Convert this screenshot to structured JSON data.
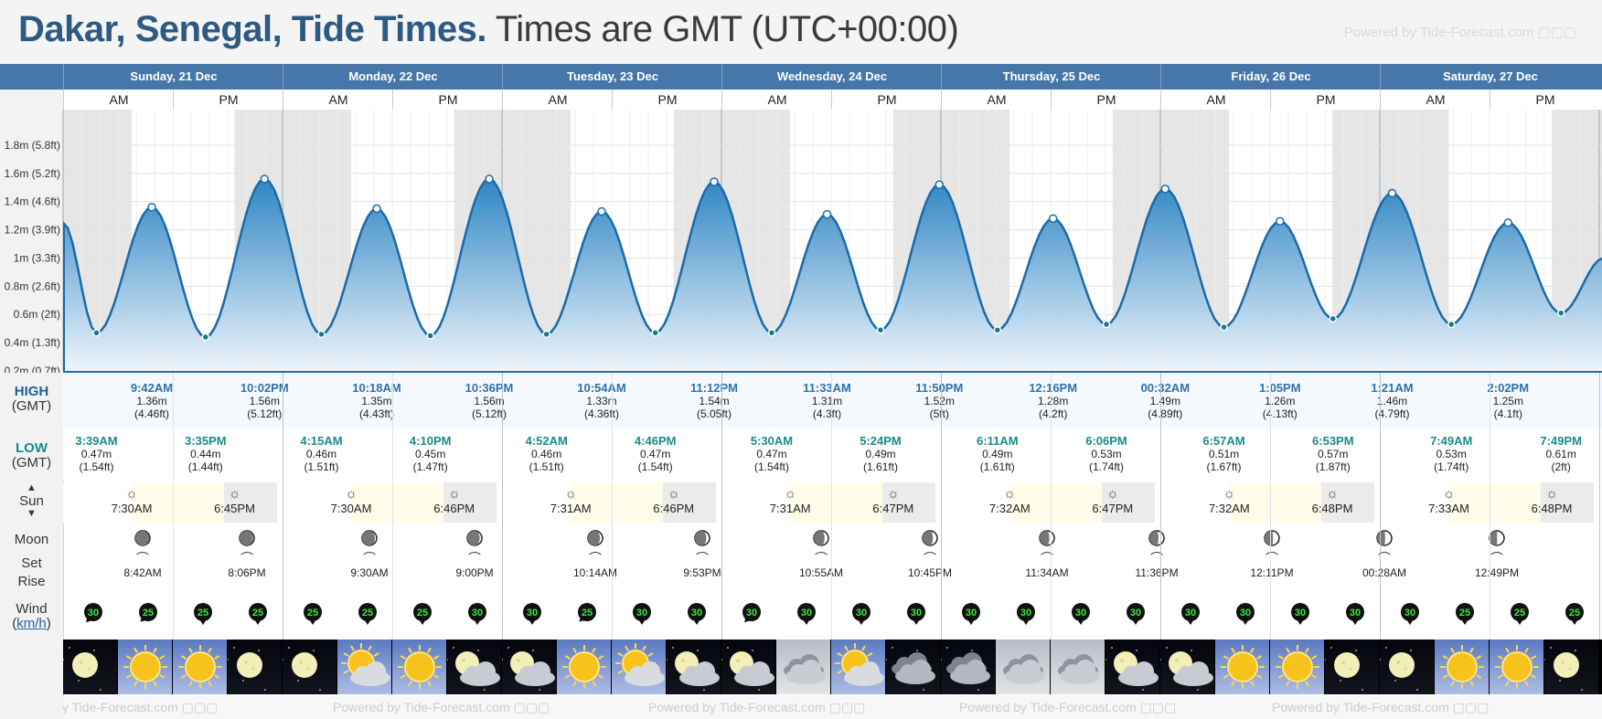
{
  "header": {
    "place": "Dakar, Senegal, Tide Times.",
    "timezone": "Times are GMT (UTC+00:00)",
    "powered": "Powered by Tide-Forecast.com"
  },
  "days": [
    {
      "name": "Sunday, 21 Dec"
    },
    {
      "name": "Monday, 22 Dec"
    },
    {
      "name": "Tuesday, 23 Dec"
    },
    {
      "name": "Wednesday, 24 Dec"
    },
    {
      "name": "Thursday, 25 Dec"
    },
    {
      "name": "Friday, 26 Dec"
    },
    {
      "name": "Saturday, 27 Dec"
    }
  ],
  "ampm": {
    "am": "AM",
    "pm": "PM"
  },
  "labels": {
    "high": "HIGH",
    "high_tz": "(GMT)",
    "low": "LOW",
    "low_tz": "(GMT)",
    "sun": "Sun",
    "moon": "Moon",
    "set": "Set",
    "rise": "Rise",
    "wind": "Wind",
    "wind_unit": "km/h"
  },
  "chart_data": {
    "type": "area",
    "yticks": [
      {
        "v": 0.2,
        "label": "0.2m (0.7ft)"
      },
      {
        "v": 0.4,
        "label": "0.4m (1.3ft)"
      },
      {
        "v": 0.6,
        "label": "0.6m (2ft)"
      },
      {
        "v": 0.8,
        "label": "0.8m (2.6ft)"
      },
      {
        "v": 1.0,
        "label": "1m (3.3ft)"
      },
      {
        "v": 1.2,
        "label": "1.2m (3.9ft)"
      },
      {
        "v": 1.4,
        "label": "1.4m (4.6ft)"
      },
      {
        "v": 1.6,
        "label": "1.6m (5.2ft)"
      },
      {
        "v": 1.8,
        "label": "1.8m (5.8ft)"
      }
    ],
    "ylim": [
      0.2,
      2.0
    ],
    "hours_shown": [
      0,
      168.5
    ],
    "start_level": 1.25,
    "end_level": 1.0,
    "extremes": [
      {
        "h": 3.65,
        "m": 0.47
      },
      {
        "h": 9.7,
        "m": 1.36
      },
      {
        "h": 15.58,
        "m": 0.44
      },
      {
        "h": 22.03,
        "m": 1.56
      },
      {
        "h": 28.25,
        "m": 0.46
      },
      {
        "h": 34.3,
        "m": 1.35
      },
      {
        "h": 40.17,
        "m": 0.45
      },
      {
        "h": 46.6,
        "m": 1.56
      },
      {
        "h": 52.87,
        "m": 0.46
      },
      {
        "h": 58.9,
        "m": 1.33
      },
      {
        "h": 64.77,
        "m": 0.47
      },
      {
        "h": 71.2,
        "m": 1.54
      },
      {
        "h": 77.5,
        "m": 0.47
      },
      {
        "h": 83.55,
        "m": 1.31
      },
      {
        "h": 89.4,
        "m": 0.49
      },
      {
        "h": 95.83,
        "m": 1.52
      },
      {
        "h": 102.18,
        "m": 0.49
      },
      {
        "h": 108.27,
        "m": 1.28
      },
      {
        "h": 114.1,
        "m": 0.53
      },
      {
        "h": 120.53,
        "m": 1.49
      },
      {
        "h": 126.95,
        "m": 0.51
      },
      {
        "h": 133.08,
        "m": 1.26
      },
      {
        "h": 138.88,
        "m": 0.57
      },
      {
        "h": 145.35,
        "m": 1.46
      },
      {
        "h": 151.82,
        "m": 0.53
      },
      {
        "h": 158.03,
        "m": 1.25
      },
      {
        "h": 163.82,
        "m": 0.61
      }
    ],
    "daylight": [
      {
        "rise": 7.5,
        "set": 18.75
      },
      {
        "rise": 31.5,
        "set": 42.77
      },
      {
        "rise": 55.52,
        "set": 66.77
      },
      {
        "rise": 79.52,
        "set": 90.78
      },
      {
        "rise": 103.53,
        "set": 114.78
      },
      {
        "rise": 127.53,
        "set": 138.8
      },
      {
        "rise": 151.55,
        "set": 162.8
      }
    ]
  },
  "tides": {
    "high": [
      {
        "h": 9.7,
        "time": "9:42AM",
        "m": "1.36m",
        "ft": "(4.46ft)"
      },
      {
        "h": 22.03,
        "time": "10:02PM",
        "m": "1.56m",
        "ft": "(5.12ft)"
      },
      {
        "h": 34.3,
        "time": "10:18AM",
        "m": "1.35m",
        "ft": "(4.43ft)"
      },
      {
        "h": 46.6,
        "time": "10:36PM",
        "m": "1.56m",
        "ft": "(5.12ft)"
      },
      {
        "h": 58.9,
        "time": "10:54AM",
        "m": "1.33m",
        "ft": "(4.36ft)"
      },
      {
        "h": 71.2,
        "time": "11:12PM",
        "m": "1.54m",
        "ft": "(5.05ft)"
      },
      {
        "h": 83.55,
        "time": "11:33AM",
        "m": "1.31m",
        "ft": "(4.3ft)"
      },
      {
        "h": 95.83,
        "time": "11:50PM",
        "m": "1.52m",
        "ft": "(5ft)"
      },
      {
        "h": 108.27,
        "time": "12:16PM",
        "m": "1.28m",
        "ft": "(4.2ft)"
      },
      {
        "h": 120.53,
        "time": "00:32AM",
        "m": "1.49m",
        "ft": "(4.89ft)"
      },
      {
        "h": 133.08,
        "time": "1:05PM",
        "m": "1.26m",
        "ft": "(4.13ft)"
      },
      {
        "h": 145.35,
        "time": "1:21AM",
        "m": "1.46m",
        "ft": "(4.79ft)"
      },
      {
        "h": 158.03,
        "time": "2:02PM",
        "m": "1.25m",
        "ft": "(4.1ft)"
      }
    ],
    "low": [
      {
        "h": 3.65,
        "time": "3:39AM",
        "m": "0.47m",
        "ft": "(1.54ft)"
      },
      {
        "h": 15.58,
        "time": "3:35PM",
        "m": "0.44m",
        "ft": "(1.44ft)"
      },
      {
        "h": 28.25,
        "time": "4:15AM",
        "m": "0.46m",
        "ft": "(1.51ft)"
      },
      {
        "h": 40.17,
        "time": "4:10PM",
        "m": "0.45m",
        "ft": "(1.47ft)"
      },
      {
        "h": 52.87,
        "time": "4:52AM",
        "m": "0.46m",
        "ft": "(1.51ft)"
      },
      {
        "h": 64.77,
        "time": "4:46PM",
        "m": "0.47m",
        "ft": "(1.54ft)"
      },
      {
        "h": 77.5,
        "time": "5:30AM",
        "m": "0.47m",
        "ft": "(1.54ft)"
      },
      {
        "h": 89.4,
        "time": "5:24PM",
        "m": "0.49m",
        "ft": "(1.61ft)"
      },
      {
        "h": 102.18,
        "time": "6:11AM",
        "m": "0.49m",
        "ft": "(1.61ft)"
      },
      {
        "h": 114.1,
        "time": "6:06PM",
        "m": "0.53m",
        "ft": "(1.74ft)"
      },
      {
        "h": 126.95,
        "time": "6:57AM",
        "m": "0.51m",
        "ft": "(1.67ft)"
      },
      {
        "h": 138.88,
        "time": "6:53PM",
        "m": "0.57m",
        "ft": "(1.87ft)"
      },
      {
        "h": 151.82,
        "time": "7:49AM",
        "m": "0.53m",
        "ft": "(1.74ft)"
      },
      {
        "h": 163.82,
        "time": "7:49PM",
        "m": "0.61m",
        "ft": "(2ft)"
      }
    ]
  },
  "sun": [
    {
      "h": 7.5,
      "kind": "rise",
      "time": "7:30AM"
    },
    {
      "h": 18.75,
      "kind": "set",
      "time": "6:45PM"
    },
    {
      "h": 31.5,
      "kind": "rise",
      "time": "7:30AM"
    },
    {
      "h": 42.77,
      "kind": "set",
      "time": "6:46PM"
    },
    {
      "h": 55.52,
      "kind": "rise",
      "time": "7:31AM"
    },
    {
      "h": 66.77,
      "kind": "set",
      "time": "6:46PM"
    },
    {
      "h": 79.52,
      "kind": "rise",
      "time": "7:31AM"
    },
    {
      "h": 90.78,
      "kind": "set",
      "time": "6:47PM"
    },
    {
      "h": 103.53,
      "kind": "rise",
      "time": "7:32AM"
    },
    {
      "h": 114.78,
      "kind": "set",
      "time": "6:47PM"
    },
    {
      "h": 127.53,
      "kind": "rise",
      "time": "7:32AM"
    },
    {
      "h": 138.8,
      "kind": "set",
      "time": "6:48PM"
    },
    {
      "h": 151.55,
      "kind": "rise",
      "time": "7:33AM"
    },
    {
      "h": 162.8,
      "kind": "set",
      "time": "6:48PM"
    }
  ],
  "moon": [
    {
      "h": 8.7,
      "kind": "set",
      "time": "8:42AM",
      "phase": 0.05
    },
    {
      "h": 20.1,
      "kind": "rise",
      "time": "8:06PM",
      "phase": 0.08
    },
    {
      "h": 33.5,
      "kind": "set",
      "time": "9:30AM",
      "phase": 0.12
    },
    {
      "h": 45.0,
      "kind": "rise",
      "time": "9:00PM",
      "phase": 0.15
    },
    {
      "h": 58.2,
      "kind": "set",
      "time": "10:14AM",
      "phase": 0.18
    },
    {
      "h": 69.9,
      "kind": "rise",
      "time": "9:53PM",
      "phase": 0.22
    },
    {
      "h": 82.9,
      "kind": "set",
      "time": "10:55AM",
      "phase": 0.26
    },
    {
      "h": 94.8,
      "kind": "rise",
      "time": "10:45PM",
      "phase": 0.3
    },
    {
      "h": 107.6,
      "kind": "set",
      "time": "11:34AM",
      "phase": 0.34
    },
    {
      "h": 119.6,
      "kind": "rise",
      "time": "11:36PM",
      "phase": 0.38
    },
    {
      "h": 132.2,
      "kind": "set",
      "time": "12:11PM",
      "phase": 0.42
    },
    {
      "h": 144.5,
      "kind": "rise",
      "time": "00:28AM",
      "phase": 0.45
    },
    {
      "h": 156.8,
      "kind": "set",
      "time": "12:49PM",
      "phase": 0.48
    }
  ],
  "wind": [
    {
      "h": 1,
      "speed": "30",
      "dir": 40
    },
    {
      "h": 7,
      "speed": "25",
      "dir": 45
    },
    {
      "h": 13,
      "speed": "25",
      "dir": 0
    },
    {
      "h": 19,
      "speed": "25",
      "dir": 0
    },
    {
      "h": 25,
      "speed": "25",
      "dir": 0
    },
    {
      "h": 31,
      "speed": "25",
      "dir": 0
    },
    {
      "h": 37,
      "speed": "25",
      "dir": 0
    },
    {
      "h": 43,
      "speed": "30",
      "dir": 0
    },
    {
      "h": 49,
      "speed": "30",
      "dir": 0
    },
    {
      "h": 55,
      "speed": "25",
      "dir": 45
    },
    {
      "h": 61,
      "speed": "30",
      "dir": 0
    },
    {
      "h": 67,
      "speed": "30",
      "dir": 0
    },
    {
      "h": 73,
      "speed": "30",
      "dir": 40
    },
    {
      "h": 79,
      "speed": "30",
      "dir": 0
    },
    {
      "h": 85,
      "speed": "30",
      "dir": 0
    },
    {
      "h": 91,
      "speed": "30",
      "dir": 0
    },
    {
      "h": 97,
      "speed": "30",
      "dir": 0
    },
    {
      "h": 103,
      "speed": "30",
      "dir": 0
    },
    {
      "h": 109,
      "speed": "30",
      "dir": 0
    },
    {
      "h": 115,
      "speed": "30",
      "dir": 0
    },
    {
      "h": 121,
      "speed": "30",
      "dir": 0
    },
    {
      "h": 127,
      "speed": "30",
      "dir": 0
    },
    {
      "h": 133,
      "speed": "30",
      "dir": 0
    },
    {
      "h": 139,
      "speed": "30",
      "dir": 0
    },
    {
      "h": 145,
      "speed": "30",
      "dir": 0
    },
    {
      "h": 151,
      "speed": "25",
      "dir": 0
    },
    {
      "h": 157,
      "speed": "25",
      "dir": 0
    },
    {
      "h": 163,
      "speed": "25",
      "dir": 0
    }
  ],
  "weather": [
    {
      "icon": "moon-clear-icon"
    },
    {
      "icon": "sun-icon"
    },
    {
      "icon": "sun-icon"
    },
    {
      "icon": "moon-clear-icon"
    },
    {
      "icon": "moon-clear-icon"
    },
    {
      "icon": "sun-cloud-icon"
    },
    {
      "icon": "sun-icon"
    },
    {
      "icon": "moon-cloud-icon"
    },
    {
      "icon": "moon-cloud-icon"
    },
    {
      "icon": "sun-icon"
    },
    {
      "icon": "sun-cloud-icon"
    },
    {
      "icon": "moon-cloud-icon"
    },
    {
      "icon": "moon-cloud-icon"
    },
    {
      "icon": "cloud-day-icon"
    },
    {
      "icon": "sun-cloud-icon"
    },
    {
      "icon": "cloud-night-icon"
    },
    {
      "icon": "cloud-night-icon"
    },
    {
      "icon": "cloud-day-icon"
    },
    {
      "icon": "cloud-day-icon"
    },
    {
      "icon": "moon-cloud-icon"
    },
    {
      "icon": "moon-cloud-icon"
    },
    {
      "icon": "sun-icon"
    },
    {
      "icon": "sun-icon"
    },
    {
      "icon": "moon-clear-icon"
    },
    {
      "icon": "moon-clear-icon"
    },
    {
      "icon": "sun-icon"
    },
    {
      "icon": "sun-icon"
    },
    {
      "icon": "moon-clear-icon"
    }
  ],
  "colors": {
    "header_blue": "#2d5a83",
    "day_bar": "#4677a8",
    "tide_fill_top": "#2f86c4",
    "tide_fill_bottom": "#eef5fb",
    "tide_line": "#1b6aa8",
    "night_shade": "#e6e6e6",
    "low_marker": "#157a86"
  }
}
